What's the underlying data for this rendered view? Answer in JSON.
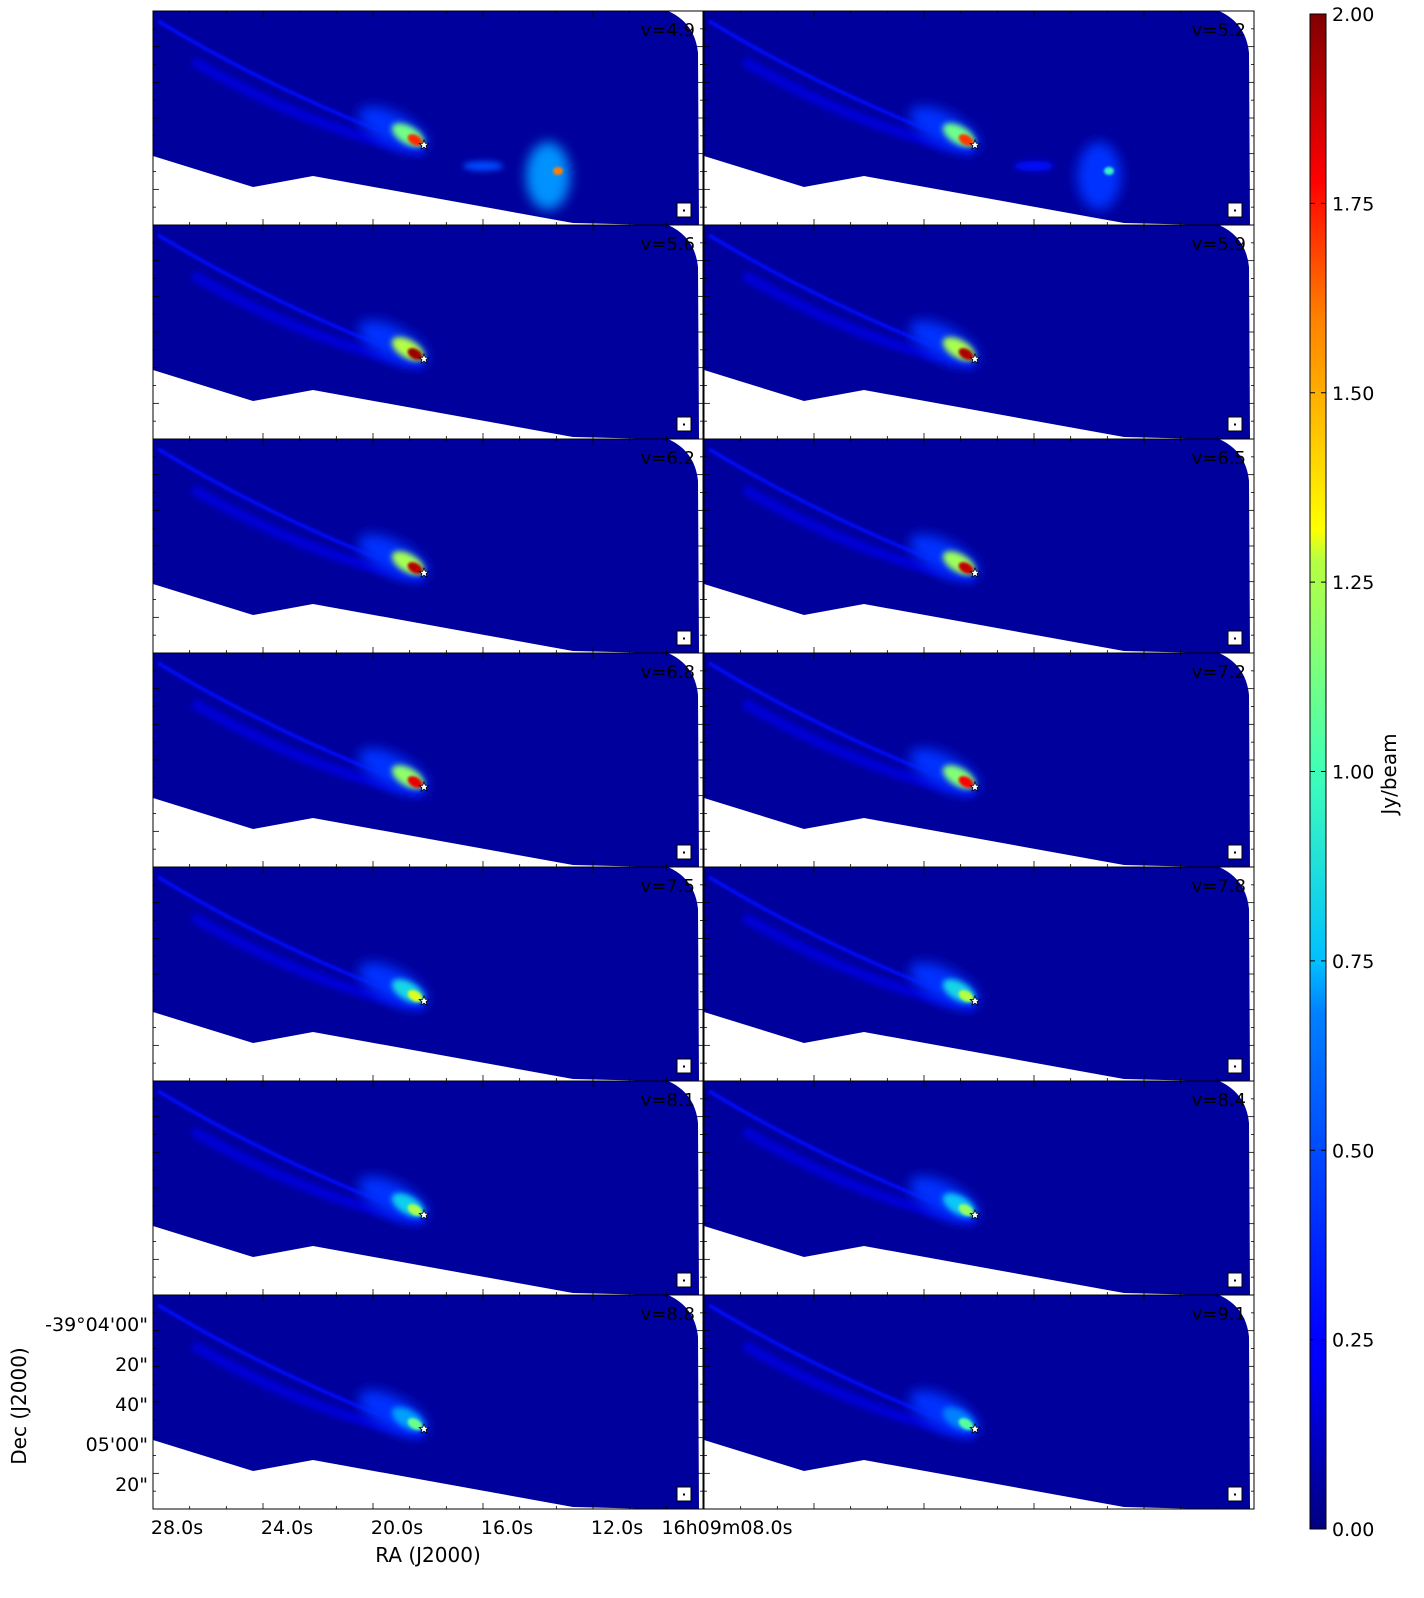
{
  "chart_data": {
    "type": "heatmap",
    "layout": {
      "rows": 7,
      "cols": 2
    },
    "panels": [
      {
        "label": "v=4.9",
        "velocity": 4.9,
        "peak": 1.72
      },
      {
        "label": "v=5.2",
        "velocity": 5.2,
        "peak": 1.7
      },
      {
        "label": "v=5.6",
        "velocity": 5.6,
        "peak": 1.95
      },
      {
        "label": "v=5.9",
        "velocity": 5.9,
        "peak": 1.92
      },
      {
        "label": "v=6.2",
        "velocity": 6.2,
        "peak": 1.9
      },
      {
        "label": "v=6.5",
        "velocity": 6.5,
        "peak": 1.88
      },
      {
        "label": "v=6.8",
        "velocity": 6.8,
        "peak": 1.82
      },
      {
        "label": "v=7.2",
        "velocity": 7.2,
        "peak": 1.78
      },
      {
        "label": "v=7.5",
        "velocity": 7.5,
        "peak": 1.3
      },
      {
        "label": "v=7.8",
        "velocity": 7.8,
        "peak": 1.28
      },
      {
        "label": "v=8.1",
        "velocity": 8.1,
        "peak": 1.25
      },
      {
        "label": "v=8.4",
        "velocity": 8.4,
        "peak": 1.2
      },
      {
        "label": "v=8.8",
        "velocity": 8.8,
        "peak": 1.1
      },
      {
        "label": "v=9.1",
        "velocity": 9.1,
        "peak": 1.05
      }
    ],
    "xlabel": "RA (J2000)",
    "ylabel": "Dec (J2000)",
    "xticks": [
      "28.0s",
      "24.0s",
      "20.0s",
      "16.0s",
      "12.0s",
      "16h09m08.0s"
    ],
    "yticks": [
      "-39°04'00\"",
      "20\"",
      "40\"",
      "05'00\"",
      "20\""
    ],
    "colorbar": {
      "label": "Jy/beam",
      "range": [
        0.0,
        2.0
      ],
      "ticks": [
        "2.00",
        "1.75",
        "1.50",
        "1.25",
        "1.00",
        "0.75",
        "0.50",
        "0.25",
        "0.00"
      ],
      "colormap": "jet"
    },
    "marker": "star"
  }
}
